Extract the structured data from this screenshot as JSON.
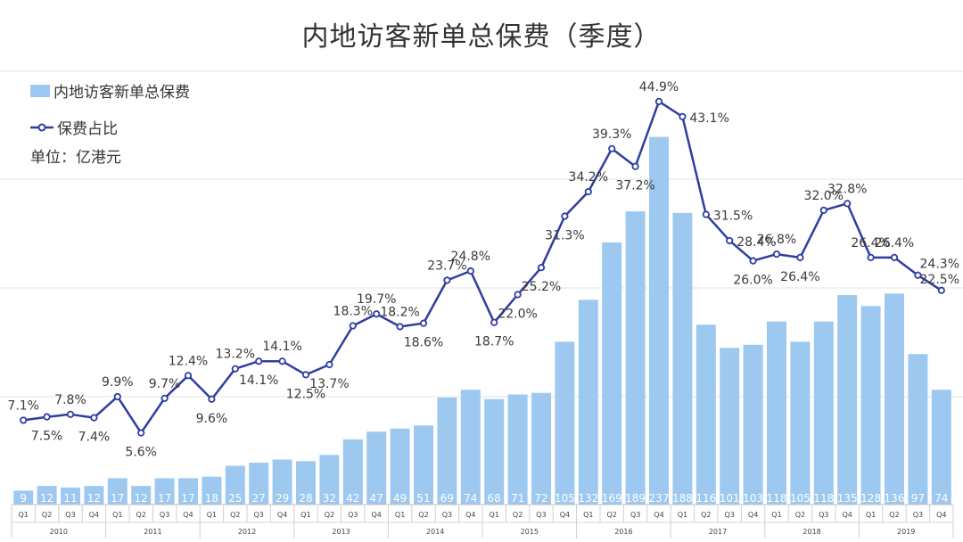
{
  "title": "内地访客新单总保费（季度）",
  "unit_label": "单位：亿港元",
  "legend": {
    "bar": "内地访客新单总保费",
    "line": "保费占比"
  },
  "colors": {
    "bar": "#9dc9f0",
    "line": "#2f3e9e",
    "bar_label": "#ffffff",
    "grid": "#e3e3e3"
  },
  "chart_data": {
    "type": "bar+line",
    "title": "内地访客新单总保费（季度）",
    "years": [
      "2010",
      "2011",
      "2012",
      "2013",
      "2014",
      "2015",
      "2016",
      "2017",
      "2018",
      "2019"
    ],
    "categories": [
      "Q1",
      "Q2",
      "Q3",
      "Q4",
      "Q1",
      "Q2",
      "Q3",
      "Q4",
      "Q1",
      "Q2",
      "Q3",
      "Q4",
      "Q1",
      "Q2",
      "Q3",
      "Q4",
      "Q1",
      "Q2",
      "Q3",
      "Q4",
      "Q1",
      "Q2",
      "Q3",
      "Q4",
      "Q1",
      "Q2",
      "Q3",
      "Q4",
      "Q1",
      "Q2",
      "Q3",
      "Q4",
      "Q1",
      "Q2",
      "Q3",
      "Q4",
      "Q1",
      "Q2",
      "Q3",
      "Q4"
    ],
    "series": [
      {
        "name": "内地访客新单总保费",
        "type": "bar",
        "values": [
          9,
          12,
          11,
          12,
          17,
          12,
          17,
          17,
          18,
          25,
          27,
          29,
          28,
          32,
          42,
          47,
          49,
          51,
          69,
          74,
          68,
          71,
          72,
          105,
          132,
          169,
          189,
          237,
          188,
          116,
          101,
          103,
          118,
          105,
          118,
          135,
          128,
          136,
          97,
          74
        ]
      },
      {
        "name": "保费占比",
        "type": "line",
        "values": [
          7.1,
          7.5,
          7.8,
          7.4,
          9.9,
          5.6,
          9.7,
          12.4,
          9.6,
          13.2,
          14.1,
          14.1,
          12.5,
          13.7,
          18.3,
          19.7,
          18.2,
          18.6,
          23.7,
          24.8,
          18.7,
          22.0,
          25.2,
          31.3,
          34.2,
          39.3,
          37.2,
          44.9,
          43.1,
          31.5,
          28.4,
          26.0,
          26.8,
          26.4,
          32.0,
          32.8,
          26.4,
          26.4,
          24.3,
          22.5
        ],
        "labels": [
          "7.1%",
          "7.5%",
          "7.8%",
          "7.4%",
          "9.9%",
          "5.6%",
          "9.7%",
          "12.4%",
          "9.6%",
          "13.2%",
          "14.1%",
          "14.1%",
          "12.5%",
          "13.7%",
          "18.3%",
          "19.7%",
          "18.2%",
          "18.6%",
          "23.7%",
          "24.8%",
          "18.7%",
          "22.0%",
          "25.2%",
          "31.3%",
          "34.2%",
          "39.3%",
          "37.2%",
          "44.9%",
          "43.1%",
          "31.5%",
          "28.4%",
          "26.0%",
          "26.8%",
          "26.4%",
          "32.0%",
          "32.8%",
          "26.4%",
          "26.4%",
          "24.3%",
          "22.5%"
        ]
      }
    ],
    "grid": true,
    "legend_position": "top-left"
  }
}
